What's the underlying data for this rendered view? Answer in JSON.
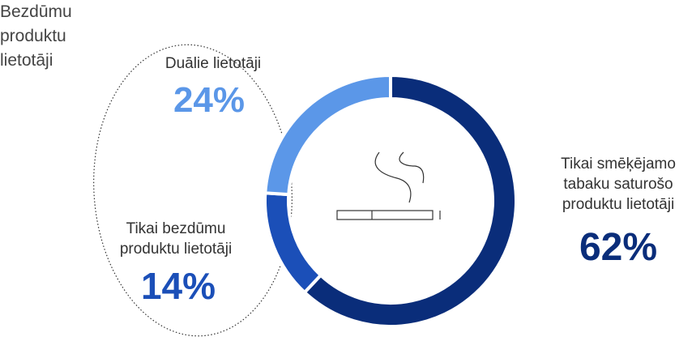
{
  "chart_data": {
    "type": "donut",
    "title": "",
    "slices": [
      {
        "label": "Tikai smēķējamo tabaku saturošo produktu lietotāji",
        "label_lines": [
          "Tikai smēķējamo",
          "tabaku saturošo",
          "produktu lietotāji"
        ],
        "value": 62,
        "display": "62%",
        "color": "#0a2d7a"
      },
      {
        "label": "Tikai bezdūmu produktu lietotāji",
        "label_lines": [
          "Tikai bezdūmu",
          "produktu lietotāji"
        ],
        "value": 14,
        "display": "14%",
        "color": "#1b4fb8"
      },
      {
        "label": "Duālie lietotāji",
        "label_lines": [
          "Duālie lietotāji"
        ],
        "value": 24,
        "display": "24%",
        "color": "#5b97e8"
      }
    ]
  },
  "group": {
    "lines": [
      "Bezdūmu",
      "produktu",
      "lietotāji"
    ]
  },
  "colors": {
    "smoked": "#0a2d7a",
    "smokeless": "#1b4fb8",
    "dual": "#5b97e8",
    "icon": "#333333"
  },
  "icon": "cigarette-icon"
}
